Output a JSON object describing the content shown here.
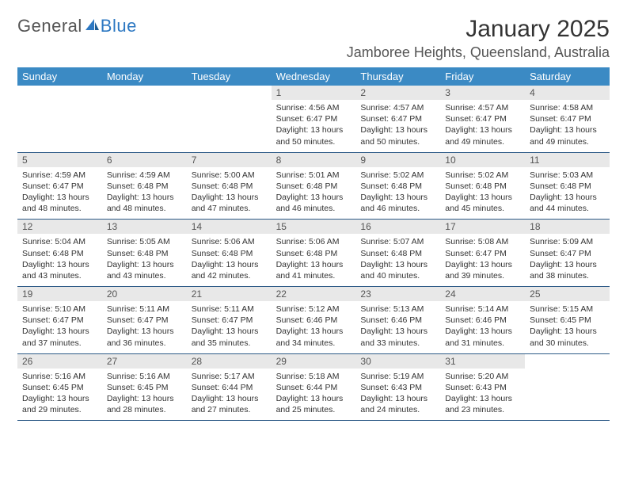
{
  "logo": {
    "text1": "General",
    "text2": "Blue"
  },
  "title": "January 2025",
  "location": "Jamboree Heights, Queensland, Australia",
  "header_bg": "#3b8ac4",
  "day_names": [
    "Sunday",
    "Monday",
    "Tuesday",
    "Wednesday",
    "Thursday",
    "Friday",
    "Saturday"
  ],
  "weeks": [
    [
      {
        "n": "",
        "s": ""
      },
      {
        "n": "",
        "s": ""
      },
      {
        "n": "",
        "s": ""
      },
      {
        "n": "1",
        "s": "Sunrise: 4:56 AM\nSunset: 6:47 PM\nDaylight: 13 hours and 50 minutes."
      },
      {
        "n": "2",
        "s": "Sunrise: 4:57 AM\nSunset: 6:47 PM\nDaylight: 13 hours and 50 minutes."
      },
      {
        "n": "3",
        "s": "Sunrise: 4:57 AM\nSunset: 6:47 PM\nDaylight: 13 hours and 49 minutes."
      },
      {
        "n": "4",
        "s": "Sunrise: 4:58 AM\nSunset: 6:47 PM\nDaylight: 13 hours and 49 minutes."
      }
    ],
    [
      {
        "n": "5",
        "s": "Sunrise: 4:59 AM\nSunset: 6:47 PM\nDaylight: 13 hours and 48 minutes."
      },
      {
        "n": "6",
        "s": "Sunrise: 4:59 AM\nSunset: 6:48 PM\nDaylight: 13 hours and 48 minutes."
      },
      {
        "n": "7",
        "s": "Sunrise: 5:00 AM\nSunset: 6:48 PM\nDaylight: 13 hours and 47 minutes."
      },
      {
        "n": "8",
        "s": "Sunrise: 5:01 AM\nSunset: 6:48 PM\nDaylight: 13 hours and 46 minutes."
      },
      {
        "n": "9",
        "s": "Sunrise: 5:02 AM\nSunset: 6:48 PM\nDaylight: 13 hours and 46 minutes."
      },
      {
        "n": "10",
        "s": "Sunrise: 5:02 AM\nSunset: 6:48 PM\nDaylight: 13 hours and 45 minutes."
      },
      {
        "n": "11",
        "s": "Sunrise: 5:03 AM\nSunset: 6:48 PM\nDaylight: 13 hours and 44 minutes."
      }
    ],
    [
      {
        "n": "12",
        "s": "Sunrise: 5:04 AM\nSunset: 6:48 PM\nDaylight: 13 hours and 43 minutes."
      },
      {
        "n": "13",
        "s": "Sunrise: 5:05 AM\nSunset: 6:48 PM\nDaylight: 13 hours and 43 minutes."
      },
      {
        "n": "14",
        "s": "Sunrise: 5:06 AM\nSunset: 6:48 PM\nDaylight: 13 hours and 42 minutes."
      },
      {
        "n": "15",
        "s": "Sunrise: 5:06 AM\nSunset: 6:48 PM\nDaylight: 13 hours and 41 minutes."
      },
      {
        "n": "16",
        "s": "Sunrise: 5:07 AM\nSunset: 6:48 PM\nDaylight: 13 hours and 40 minutes."
      },
      {
        "n": "17",
        "s": "Sunrise: 5:08 AM\nSunset: 6:47 PM\nDaylight: 13 hours and 39 minutes."
      },
      {
        "n": "18",
        "s": "Sunrise: 5:09 AM\nSunset: 6:47 PM\nDaylight: 13 hours and 38 minutes."
      }
    ],
    [
      {
        "n": "19",
        "s": "Sunrise: 5:10 AM\nSunset: 6:47 PM\nDaylight: 13 hours and 37 minutes."
      },
      {
        "n": "20",
        "s": "Sunrise: 5:11 AM\nSunset: 6:47 PM\nDaylight: 13 hours and 36 minutes."
      },
      {
        "n": "21",
        "s": "Sunrise: 5:11 AM\nSunset: 6:47 PM\nDaylight: 13 hours and 35 minutes."
      },
      {
        "n": "22",
        "s": "Sunrise: 5:12 AM\nSunset: 6:46 PM\nDaylight: 13 hours and 34 minutes."
      },
      {
        "n": "23",
        "s": "Sunrise: 5:13 AM\nSunset: 6:46 PM\nDaylight: 13 hours and 33 minutes."
      },
      {
        "n": "24",
        "s": "Sunrise: 5:14 AM\nSunset: 6:46 PM\nDaylight: 13 hours and 31 minutes."
      },
      {
        "n": "25",
        "s": "Sunrise: 5:15 AM\nSunset: 6:45 PM\nDaylight: 13 hours and 30 minutes."
      }
    ],
    [
      {
        "n": "26",
        "s": "Sunrise: 5:16 AM\nSunset: 6:45 PM\nDaylight: 13 hours and 29 minutes."
      },
      {
        "n": "27",
        "s": "Sunrise: 5:16 AM\nSunset: 6:45 PM\nDaylight: 13 hours and 28 minutes."
      },
      {
        "n": "28",
        "s": "Sunrise: 5:17 AM\nSunset: 6:44 PM\nDaylight: 13 hours and 27 minutes."
      },
      {
        "n": "29",
        "s": "Sunrise: 5:18 AM\nSunset: 6:44 PM\nDaylight: 13 hours and 25 minutes."
      },
      {
        "n": "30",
        "s": "Sunrise: 5:19 AM\nSunset: 6:43 PM\nDaylight: 13 hours and 24 minutes."
      },
      {
        "n": "31",
        "s": "Sunrise: 5:20 AM\nSunset: 6:43 PM\nDaylight: 13 hours and 23 minutes."
      },
      {
        "n": "",
        "s": ""
      }
    ]
  ]
}
